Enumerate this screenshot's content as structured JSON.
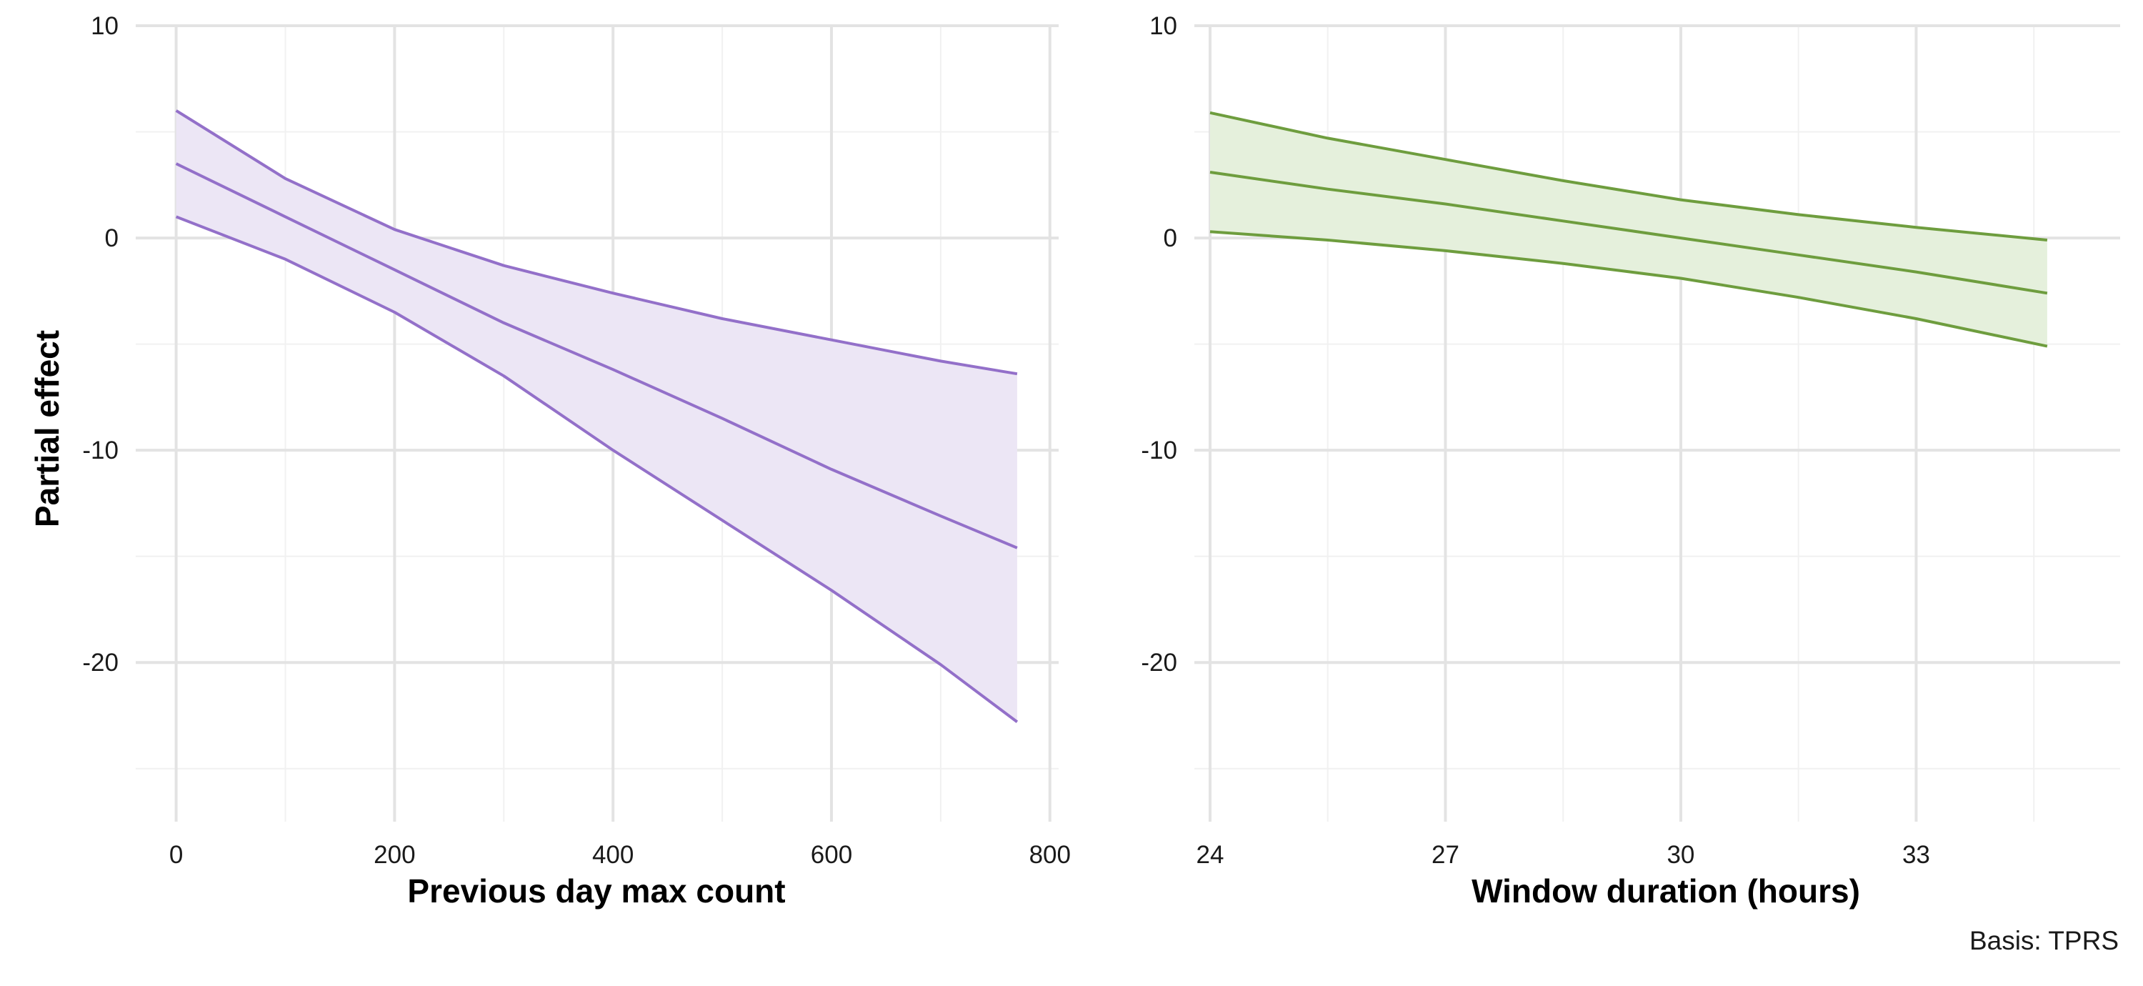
{
  "shared_y_axis": {
    "label": "Partial effect"
  },
  "caption": "Basis: TPRS",
  "colors": {
    "background": "#ffffff",
    "grid_major": "#e3e3e3",
    "grid_minor": "#f1f1f1",
    "panel_1_line": "#9370c9",
    "panel_1_fill": "#ece6f5",
    "panel_2_line": "#6e9d3e",
    "panel_2_fill": "#e5f0dc"
  },
  "chart_data": [
    {
      "type": "line",
      "xlabel": "Previous day max count",
      "ylabel": "Partial effect",
      "xlim": [
        -37,
        808
      ],
      "ylim": [
        -27.5,
        10
      ],
      "x_ticks": [
        0,
        200,
        400,
        600,
        800
      ],
      "x_minor_ticks": [
        100,
        300,
        500,
        700
      ],
      "y_ticks": [
        10,
        0,
        -10,
        -20
      ],
      "y_minor_ticks": [
        5,
        -5,
        -15,
        -25
      ],
      "grid": true,
      "confidence_band": true,
      "x": [
        0,
        100,
        200,
        300,
        400,
        500,
        600,
        700,
        770
      ],
      "series": [
        {
          "role": "fit",
          "values": [
            3.5,
            1.0,
            -1.5,
            -4.0,
            -6.2,
            -8.5,
            -10.9,
            -13.1,
            -14.6
          ]
        },
        {
          "role": "upper",
          "values": [
            6.0,
            2.8,
            0.4,
            -1.3,
            -2.6,
            -3.8,
            -4.8,
            -5.8,
            -6.4
          ]
        },
        {
          "role": "lower",
          "values": [
            1.0,
            -1.0,
            -3.5,
            -6.5,
            -10.0,
            -13.3,
            -16.6,
            -20.1,
            -22.8
          ]
        }
      ]
    },
    {
      "type": "line",
      "xlabel": "Window duration (hours)",
      "ylabel": "",
      "xlim": [
        23.8,
        35.6
      ],
      "ylim": [
        -27.5,
        10
      ],
      "x_ticks": [
        24,
        27,
        30,
        33
      ],
      "x_minor_ticks": [
        25.5,
        28.5,
        31.5,
        34.5
      ],
      "y_ticks": [
        10,
        0,
        -10,
        -20
      ],
      "y_minor_ticks": [
        5,
        -5,
        -15,
        -25
      ],
      "grid": true,
      "confidence_band": true,
      "x": [
        24,
        25.5,
        27,
        28.5,
        30,
        31.5,
        33,
        34.67
      ],
      "series": [
        {
          "role": "fit",
          "values": [
            3.1,
            2.3,
            1.6,
            0.8,
            0.0,
            -0.8,
            -1.6,
            -2.6
          ]
        },
        {
          "role": "upper",
          "values": [
            5.9,
            4.7,
            3.7,
            2.7,
            1.8,
            1.1,
            0.5,
            -0.1
          ]
        },
        {
          "role": "lower",
          "values": [
            0.3,
            -0.1,
            -0.6,
            -1.2,
            -1.9,
            -2.8,
            -3.8,
            -5.1
          ]
        }
      ]
    }
  ]
}
